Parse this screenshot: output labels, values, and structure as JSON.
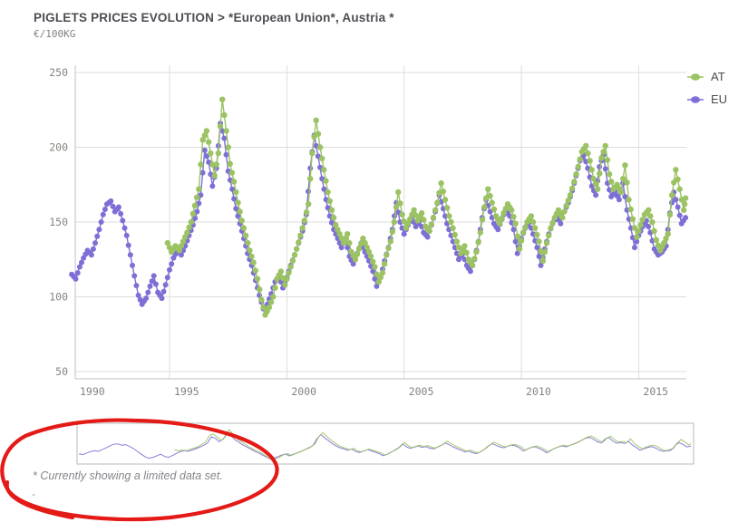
{
  "header": {
    "title": "PIGLETS PRICES EVOLUTION > *European Union*, Austria *",
    "subtitle": "€/100KG"
  },
  "footnote": {
    "text": "* Currently showing a limited data set.",
    "dash_label": "-"
  },
  "annotation": {
    "shape": "hand-drawn red circle over navigator and footnote",
    "color": "#e41a17"
  },
  "colors": {
    "grid": "#dddddd",
    "axis": "#c2c2c2",
    "tick_text": "#85837f",
    "navigator_border": "#b9b9b9"
  },
  "chart_data": {
    "type": "line",
    "title": "PIGLETS PRICES EVOLUTION > *European Union*, Austria *",
    "ylabel": "€/100KG",
    "xlabel": "",
    "grid": true,
    "legend_position": "top-right",
    "x_ticks": [
      1990,
      1995,
      2000,
      2005,
      2010,
      2015
    ],
    "y_ticks": [
      50,
      100,
      150,
      200,
      250
    ],
    "ylim": [
      50,
      255
    ],
    "xlim": [
      1990,
      2017
    ],
    "marker": "dot",
    "navigator": true,
    "series": [
      {
        "name": "AT",
        "color": "#9bc263",
        "points": [
          [
            1994.92,
            136
          ],
          [
            1995.08,
            130
          ],
          [
            1995.25,
            134
          ],
          [
            1995.42,
            131
          ],
          [
            1995.58,
            137
          ],
          [
            1995.75,
            143
          ],
          [
            1995.92,
            150
          ],
          [
            1996.08,
            161
          ],
          [
            1996.25,
            172
          ],
          [
            1996.42,
            205
          ],
          [
            1996.58,
            211
          ],
          [
            1996.75,
            196
          ],
          [
            1996.92,
            181
          ],
          [
            1997.08,
            196
          ],
          [
            1997.25,
            232
          ],
          [
            1997.42,
            211
          ],
          [
            1997.58,
            189
          ],
          [
            1997.75,
            177
          ],
          [
            1997.92,
            163
          ],
          [
            1998.08,
            151
          ],
          [
            1998.25,
            141
          ],
          [
            1998.42,
            131
          ],
          [
            1998.58,
            123
          ],
          [
            1998.75,
            112
          ],
          [
            1998.92,
            98
          ],
          [
            1999.08,
            88
          ],
          [
            1999.25,
            93
          ],
          [
            1999.42,
            100
          ],
          [
            1999.58,
            112
          ],
          [
            1999.75,
            117
          ],
          [
            1999.92,
            108
          ],
          [
            2000.08,
            116
          ],
          [
            2000.25,
            124
          ],
          [
            2000.42,
            132
          ],
          [
            2000.58,
            141
          ],
          [
            2000.75,
            151
          ],
          [
            2000.92,
            162
          ],
          [
            2001.08,
            196
          ],
          [
            2001.25,
            218
          ],
          [
            2001.42,
            200
          ],
          [
            2001.58,
            185
          ],
          [
            2001.75,
            170
          ],
          [
            2001.92,
            158
          ],
          [
            2002.08,
            148
          ],
          [
            2002.25,
            142
          ],
          [
            2002.42,
            136
          ],
          [
            2002.58,
            142
          ],
          [
            2002.75,
            130
          ],
          [
            2002.92,
            125
          ],
          [
            2003.08,
            132
          ],
          [
            2003.25,
            139
          ],
          [
            2003.42,
            133
          ],
          [
            2003.58,
            127
          ],
          [
            2003.75,
            120
          ],
          [
            2003.92,
            110
          ],
          [
            2004.08,
            116
          ],
          [
            2004.25,
            128
          ],
          [
            2004.42,
            137
          ],
          [
            2004.58,
            150
          ],
          [
            2004.75,
            170
          ],
          [
            2004.92,
            155
          ],
          [
            2005.08,
            146
          ],
          [
            2005.25,
            152
          ],
          [
            2005.42,
            158
          ],
          [
            2005.58,
            151
          ],
          [
            2005.75,
            156
          ],
          [
            2005.92,
            147
          ],
          [
            2006.08,
            144
          ],
          [
            2006.25,
            153
          ],
          [
            2006.42,
            163
          ],
          [
            2006.58,
            176
          ],
          [
            2006.75,
            165
          ],
          [
            2006.92,
            154
          ],
          [
            2007.08,
            146
          ],
          [
            2007.25,
            137
          ],
          [
            2007.42,
            129
          ],
          [
            2007.58,
            134
          ],
          [
            2007.75,
            125
          ],
          [
            2007.92,
            121
          ],
          [
            2008.08,
            130
          ],
          [
            2008.25,
            143
          ],
          [
            2008.42,
            160
          ],
          [
            2008.58,
            172
          ],
          [
            2008.75,
            163
          ],
          [
            2008.92,
            154
          ],
          [
            2009.08,
            149
          ],
          [
            2009.25,
            156
          ],
          [
            2009.42,
            162
          ],
          [
            2009.58,
            158
          ],
          [
            2009.75,
            149
          ],
          [
            2009.92,
            132
          ],
          [
            2010.08,
            143
          ],
          [
            2010.25,
            150
          ],
          [
            2010.42,
            154
          ],
          [
            2010.58,
            146
          ],
          [
            2010.75,
            137
          ],
          [
            2010.92,
            124
          ],
          [
            2011.08,
            136
          ],
          [
            2011.25,
            146
          ],
          [
            2011.42,
            153
          ],
          [
            2011.58,
            158
          ],
          [
            2011.75,
            153
          ],
          [
            2011.92,
            161
          ],
          [
            2012.08,
            168
          ],
          [
            2012.25,
            177
          ],
          [
            2012.42,
            187
          ],
          [
            2012.58,
            197
          ],
          [
            2012.75,
            201
          ],
          [
            2012.92,
            191
          ],
          [
            2013.08,
            179
          ],
          [
            2013.25,
            172
          ],
          [
            2013.42,
            193
          ],
          [
            2013.58,
            201
          ],
          [
            2013.75,
            182
          ],
          [
            2013.92,
            172
          ],
          [
            2014.08,
            175
          ],
          [
            2014.25,
            170
          ],
          [
            2014.42,
            188
          ],
          [
            2014.58,
            165
          ],
          [
            2014.75,
            152
          ],
          [
            2014.92,
            140
          ],
          [
            2015.08,
            148
          ],
          [
            2015.25,
            155
          ],
          [
            2015.42,
            158
          ],
          [
            2015.58,
            150
          ],
          [
            2015.75,
            138
          ],
          [
            2015.92,
            131
          ],
          [
            2016.08,
            136
          ],
          [
            2016.25,
            142
          ],
          [
            2016.42,
            168
          ],
          [
            2016.58,
            185
          ],
          [
            2016.75,
            172
          ],
          [
            2016.92,
            158
          ],
          [
            2017.0,
            166
          ]
        ]
      },
      {
        "name": "EU",
        "color": "#7d6fd6",
        "points": [
          [
            1990.83,
            115
          ],
          [
            1991.0,
            112
          ],
          [
            1991.17,
            120
          ],
          [
            1991.33,
            126
          ],
          [
            1991.5,
            131
          ],
          [
            1991.67,
            128
          ],
          [
            1991.83,
            136
          ],
          [
            1992.0,
            145
          ],
          [
            1992.17,
            155
          ],
          [
            1992.33,
            162
          ],
          [
            1992.5,
            164
          ],
          [
            1992.67,
            157
          ],
          [
            1992.83,
            160
          ],
          [
            1993.0,
            151
          ],
          [
            1993.17,
            141
          ],
          [
            1993.33,
            128
          ],
          [
            1993.5,
            114
          ],
          [
            1993.67,
            101
          ],
          [
            1993.83,
            95
          ],
          [
            1994.0,
            99
          ],
          [
            1994.17,
            107
          ],
          [
            1994.33,
            114
          ],
          [
            1994.5,
            103
          ],
          [
            1994.67,
            99
          ],
          [
            1994.83,
            108
          ],
          [
            1995.0,
            118
          ],
          [
            1995.17,
            126
          ],
          [
            1995.33,
            131
          ],
          [
            1995.5,
            128
          ],
          [
            1995.67,
            134
          ],
          [
            1995.83,
            141
          ],
          [
            1996.0,
            148
          ],
          [
            1996.17,
            157
          ],
          [
            1996.33,
            168
          ],
          [
            1996.5,
            198
          ],
          [
            1996.67,
            190
          ],
          [
            1996.83,
            174
          ],
          [
            1997.0,
            186
          ],
          [
            1997.17,
            216
          ],
          [
            1997.33,
            206
          ],
          [
            1997.5,
            184
          ],
          [
            1997.67,
            172
          ],
          [
            1997.83,
            159
          ],
          [
            1998.0,
            149
          ],
          [
            1998.17,
            139
          ],
          [
            1998.33,
            129
          ],
          [
            1998.5,
            121
          ],
          [
            1998.67,
            111
          ],
          [
            1998.83,
            101
          ],
          [
            1999.0,
            92
          ],
          [
            1999.17,
            95
          ],
          [
            1999.33,
            102
          ],
          [
            1999.5,
            110
          ],
          [
            1999.67,
            114
          ],
          [
            1999.83,
            106
          ],
          [
            2000.0,
            113
          ],
          [
            2000.17,
            121
          ],
          [
            2000.33,
            128
          ],
          [
            2000.5,
            136
          ],
          [
            2000.67,
            144
          ],
          [
            2000.83,
            155
          ],
          [
            2001.0,
            186
          ],
          [
            2001.17,
            208
          ],
          [
            2001.33,
            194
          ],
          [
            2001.5,
            179
          ],
          [
            2001.67,
            165
          ],
          [
            2001.83,
            154
          ],
          [
            2002.0,
            145
          ],
          [
            2002.17,
            139
          ],
          [
            2002.33,
            133
          ],
          [
            2002.5,
            139
          ],
          [
            2002.67,
            127
          ],
          [
            2002.83,
            122
          ],
          [
            2003.0,
            129
          ],
          [
            2003.17,
            136
          ],
          [
            2003.33,
            130
          ],
          [
            2003.5,
            124
          ],
          [
            2003.67,
            117
          ],
          [
            2003.83,
            107
          ],
          [
            2004.0,
            113
          ],
          [
            2004.17,
            124
          ],
          [
            2004.33,
            133
          ],
          [
            2004.5,
            145
          ],
          [
            2004.67,
            163
          ],
          [
            2004.83,
            150
          ],
          [
            2005.0,
            142
          ],
          [
            2005.17,
            148
          ],
          [
            2005.33,
            153
          ],
          [
            2005.5,
            147
          ],
          [
            2005.67,
            151
          ],
          [
            2005.83,
            143
          ],
          [
            2006.0,
            140
          ],
          [
            2006.17,
            148
          ],
          [
            2006.33,
            157
          ],
          [
            2006.5,
            168
          ],
          [
            2006.67,
            159
          ],
          [
            2006.83,
            149
          ],
          [
            2007.0,
            141
          ],
          [
            2007.17,
            133
          ],
          [
            2007.33,
            125
          ],
          [
            2007.5,
            129
          ],
          [
            2007.67,
            121
          ],
          [
            2007.83,
            117
          ],
          [
            2008.0,
            125
          ],
          [
            2008.17,
            137
          ],
          [
            2008.33,
            153
          ],
          [
            2008.5,
            165
          ],
          [
            2008.67,
            157
          ],
          [
            2008.83,
            149
          ],
          [
            2009.0,
            145
          ],
          [
            2009.17,
            152
          ],
          [
            2009.33,
            158
          ],
          [
            2009.5,
            154
          ],
          [
            2009.67,
            145
          ],
          [
            2009.83,
            129
          ],
          [
            2010.0,
            139
          ],
          [
            2010.17,
            146
          ],
          [
            2010.33,
            150
          ],
          [
            2010.5,
            142
          ],
          [
            2010.67,
            133
          ],
          [
            2010.83,
            121
          ],
          [
            2011.0,
            132
          ],
          [
            2011.17,
            142
          ],
          [
            2011.33,
            149
          ],
          [
            2011.5,
            154
          ],
          [
            2011.67,
            149
          ],
          [
            2011.83,
            157
          ],
          [
            2012.0,
            163
          ],
          [
            2012.17,
            171
          ],
          [
            2012.33,
            181
          ],
          [
            2012.5,
            191
          ],
          [
            2012.67,
            195
          ],
          [
            2012.83,
            186
          ],
          [
            2013.0,
            174
          ],
          [
            2013.17,
            168
          ],
          [
            2013.33,
            187
          ],
          [
            2013.5,
            195
          ],
          [
            2013.67,
            176
          ],
          [
            2013.83,
            167
          ],
          [
            2014.0,
            170
          ],
          [
            2014.17,
            165
          ],
          [
            2014.33,
            176
          ],
          [
            2014.5,
            158
          ],
          [
            2014.67,
            146
          ],
          [
            2014.83,
            133
          ],
          [
            2015.0,
            141
          ],
          [
            2015.17,
            147
          ],
          [
            2015.33,
            151
          ],
          [
            2015.5,
            143
          ],
          [
            2015.67,
            132
          ],
          [
            2015.83,
            128
          ],
          [
            2016.0,
            130
          ],
          [
            2016.17,
            134
          ],
          [
            2016.33,
            156
          ],
          [
            2016.5,
            170
          ],
          [
            2016.67,
            160
          ],
          [
            2016.83,
            149
          ],
          [
            2017.0,
            153
          ]
        ]
      }
    ]
  }
}
